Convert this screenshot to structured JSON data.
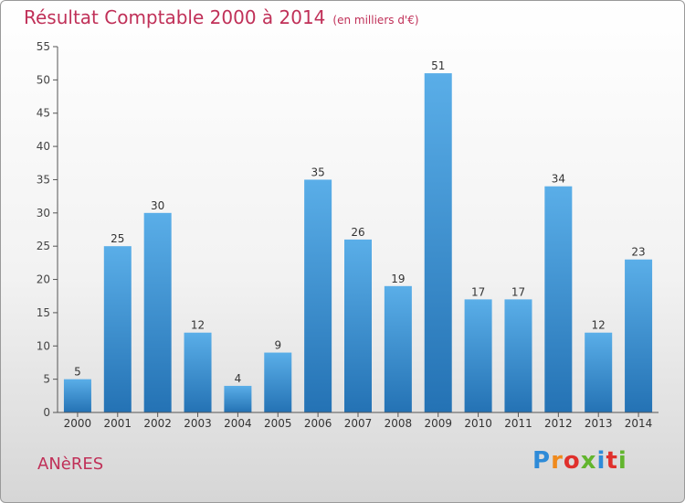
{
  "header": {
    "title": "Résultat Comptable 2000 à 2014",
    "unit": "(en milliers d'€)"
  },
  "footer": {
    "place": "ANèRES",
    "logo": "Proxiti"
  },
  "colors": {
    "title": "#c03058",
    "bar_top": "#5aaee8",
    "bar_bottom": "#2472b4",
    "axis": "#555555"
  },
  "chart_data": {
    "type": "bar",
    "title": "Résultat Comptable 2000 à 2014",
    "xlabel": "",
    "ylabel": "",
    "ylim": [
      0,
      55
    ],
    "yticks": [
      0,
      5,
      10,
      15,
      20,
      25,
      30,
      35,
      40,
      45,
      50,
      55
    ],
    "categories": [
      "2000",
      "2001",
      "2002",
      "2003",
      "2004",
      "2005",
      "2006",
      "2007",
      "2008",
      "2009",
      "2010",
      "2011",
      "2012",
      "2013",
      "2014"
    ],
    "values": [
      5,
      25,
      30,
      12,
      4,
      9,
      35,
      26,
      19,
      51,
      17,
      17,
      34,
      12,
      23
    ]
  }
}
